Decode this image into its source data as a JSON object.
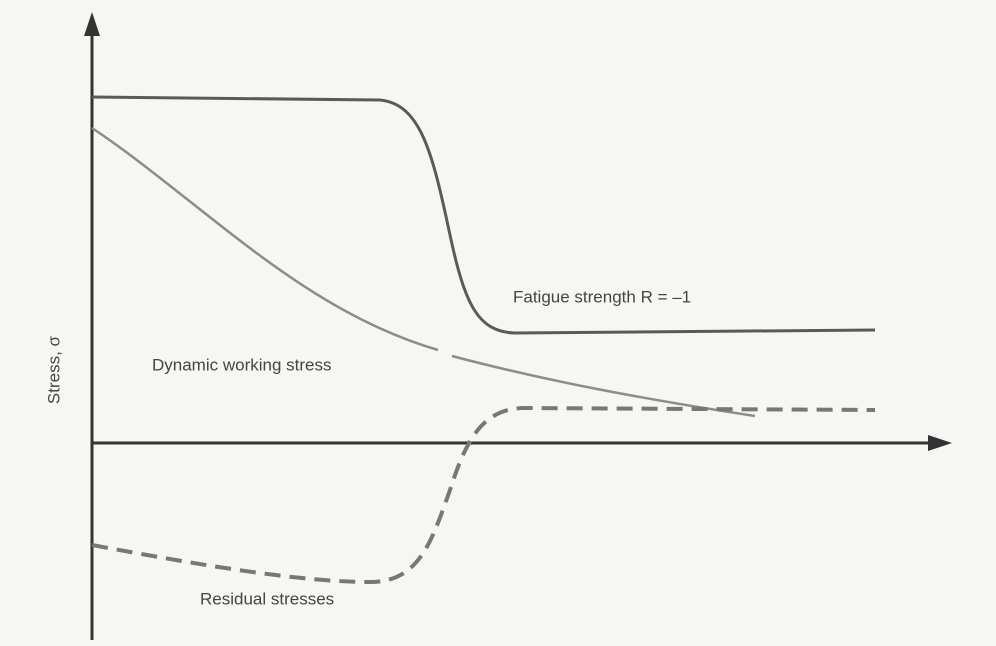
{
  "axis_label": "Stress, σ",
  "curves": [
    {
      "label": "Fatigue strength R = –1"
    },
    {
      "label": "Dynamic working stress"
    },
    {
      "label": "Residual stresses"
    }
  ]
}
